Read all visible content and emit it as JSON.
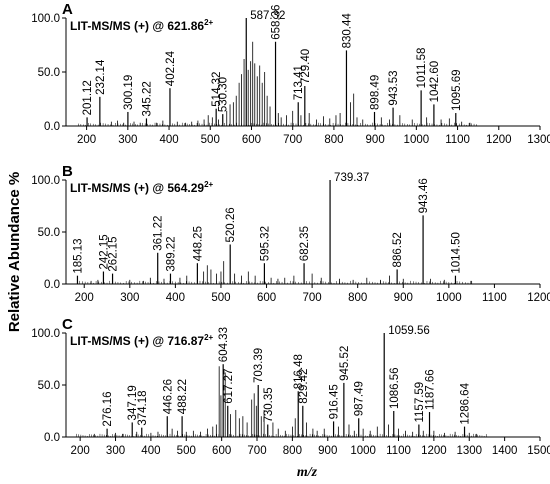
{
  "chart_data": {
    "ylabel": "Relative Abundance %",
    "xlabel": "m/z",
    "panels": [
      {
        "letter": "A",
        "title_prefix": "LIT-MS/MS (+) @ ",
        "precursor": "621.86",
        "charge": "2+",
        "type": "bar",
        "xlim": [
          150,
          1300
        ],
        "xticks": [
          "200",
          "300",
          "400",
          "500",
          "600",
          "700",
          "800",
          "900",
          "1000",
          "1100",
          "1200",
          "1300"
        ],
        "ylim": [
          0,
          100
        ],
        "yticks": [
          "0.0",
          "50.0",
          "100.0"
        ],
        "labeled_peaks": [
          {
            "label": "201.12",
            "mz": 201.12,
            "y": 8
          },
          {
            "label": "232.14",
            "mz": 232.14,
            "y": 27
          },
          {
            "label": "300.19",
            "mz": 300.19,
            "y": 13
          },
          {
            "label": "345.22",
            "mz": 345.22,
            "y": 7
          },
          {
            "label": "402.24",
            "mz": 402.24,
            "y": 35
          },
          {
            "label": "514.32",
            "mz": 514.32,
            "y": 16
          },
          {
            "label": "530.30",
            "mz": 530.3,
            "y": 11
          },
          {
            "label": "587.32",
            "mz": 587.32,
            "y": 100
          },
          {
            "label": "658.36",
            "mz": 658.36,
            "y": 78
          },
          {
            "label": "713.41",
            "mz": 713.41,
            "y": 22
          },
          {
            "label": "729.40",
            "mz": 729.4,
            "y": 37
          },
          {
            "label": "830.44",
            "mz": 830.44,
            "y": 70
          },
          {
            "label": "898.49",
            "mz": 898.49,
            "y": 13
          },
          {
            "label": "943.53",
            "mz": 943.53,
            "y": 17
          },
          {
            "label": "1011.58",
            "mz": 1011.58,
            "y": 33
          },
          {
            "label": "1042.60",
            "mz": 1042.6,
            "y": 20
          },
          {
            "label": "1095.69",
            "mz": 1095.69,
            "y": 12
          }
        ],
        "minor_peaks": [
          [
            260,
            4
          ],
          [
            275,
            5
          ],
          [
            290,
            3
          ],
          [
            315,
            4
          ],
          [
            330,
            3
          ],
          [
            370,
            3
          ],
          [
            385,
            5
          ],
          [
            420,
            4
          ],
          [
            440,
            3
          ],
          [
            455,
            4
          ],
          [
            470,
            5
          ],
          [
            485,
            6
          ],
          [
            495,
            10
          ],
          [
            505,
            8
          ],
          [
            520,
            6
          ],
          [
            540,
            14
          ],
          [
            548,
            20
          ],
          [
            556,
            22
          ],
          [
            563,
            28
          ],
          [
            570,
            40
          ],
          [
            576,
            48
          ],
          [
            582,
            62
          ],
          [
            592,
            52
          ],
          [
            598,
            60
          ],
          [
            603,
            78
          ],
          [
            608,
            58
          ],
          [
            614,
            46
          ],
          [
            620,
            56
          ],
          [
            626,
            40
          ],
          [
            632,
            50
          ],
          [
            638,
            28
          ],
          [
            645,
            18
          ],
          [
            665,
            12
          ],
          [
            672,
            8
          ],
          [
            685,
            10
          ],
          [
            700,
            14
          ],
          [
            720,
            10
          ],
          [
            740,
            12
          ],
          [
            758,
            6
          ],
          [
            775,
            9
          ],
          [
            790,
            7
          ],
          [
            805,
            10
          ],
          [
            815,
            12
          ],
          [
            840,
            22
          ],
          [
            848,
            30
          ],
          [
            856,
            8
          ],
          [
            870,
            6
          ],
          [
            915,
            8
          ],
          [
            935,
            6
          ],
          [
            960,
            10
          ],
          [
            990,
            6
          ],
          [
            1025,
            8
          ],
          [
            1060,
            6
          ],
          [
            1080,
            7
          ],
          [
            1110,
            4
          ],
          [
            1130,
            3
          ]
        ]
      },
      {
        "letter": "B",
        "title_prefix": "LIT-MS/MS (+) @ ",
        "precursor": "564.29",
        "charge": "2+",
        "type": "bar",
        "xlim": [
          160,
          1200
        ],
        "xticks": [
          "200",
          "300",
          "400",
          "500",
          "600",
          "700",
          "800",
          "900",
          "1000",
          "1100",
          "1200"
        ],
        "ylim": [
          0,
          100
        ],
        "yticks": [
          "0.0",
          "50.0",
          "100.0"
        ],
        "labeled_peaks": [
          {
            "label": "185.13",
            "mz": 185.13,
            "y": 8
          },
          {
            "label": "242.15",
            "mz": 242.15,
            "y": 12
          },
          {
            "label": "262.15",
            "mz": 262.15,
            "y": 10
          },
          {
            "label": "361.22",
            "mz": 361.22,
            "y": 30
          },
          {
            "label": "389.22",
            "mz": 389.22,
            "y": 10
          },
          {
            "label": "448.25",
            "mz": 448.25,
            "y": 20
          },
          {
            "label": "520.26",
            "mz": 520.26,
            "y": 38
          },
          {
            "label": "595.32",
            "mz": 595.32,
            "y": 20
          },
          {
            "label": "682.35",
            "mz": 682.35,
            "y": 20
          },
          {
            "label": "739.37",
            "mz": 739.37,
            "y": 100
          },
          {
            "label": "886.52",
            "mz": 886.52,
            "y": 14
          },
          {
            "label": "943.46",
            "mz": 943.46,
            "y": 66
          },
          {
            "label": "1014.50",
            "mz": 1014.5,
            "y": 8
          }
        ],
        "minor_peaks": [
          [
            215,
            3
          ],
          [
            230,
            4
          ],
          [
            300,
            4
          ],
          [
            330,
            3
          ],
          [
            345,
            6
          ],
          [
            375,
            5
          ],
          [
            410,
            6
          ],
          [
            425,
            8
          ],
          [
            462,
            12
          ],
          [
            470,
            18
          ],
          [
            478,
            14
          ],
          [
            490,
            10
          ],
          [
            500,
            12
          ],
          [
            506,
            22
          ],
          [
            530,
            10
          ],
          [
            545,
            8
          ],
          [
            560,
            12
          ],
          [
            575,
            8
          ],
          [
            610,
            6
          ],
          [
            625,
            5
          ],
          [
            640,
            6
          ],
          [
            660,
            8
          ],
          [
            700,
            10
          ],
          [
            720,
            6
          ],
          [
            760,
            5
          ],
          [
            790,
            4
          ],
          [
            820,
            6
          ],
          [
            850,
            4
          ],
          [
            870,
            8
          ],
          [
            900,
            5
          ],
          [
            960,
            5
          ],
          [
            990,
            4
          ],
          [
            1050,
            3
          ]
        ]
      },
      {
        "letter": "C",
        "title_prefix": "LIT-MS/MS (+) @ ",
        "precursor": "716.87",
        "charge": "2+",
        "type": "bar",
        "xlim": [
          160,
          1500
        ],
        "xticks": [
          "200",
          "300",
          "400",
          "500",
          "600",
          "700",
          "800",
          "900",
          "1000",
          "1100",
          "1200",
          "1300",
          "1400",
          "1500"
        ],
        "ylim": [
          0,
          100
        ],
        "yticks": [
          "0.0",
          "50.0",
          "100.0"
        ],
        "labeled_peaks": [
          {
            "label": "276.16",
            "mz": 276.16,
            "y": 8
          },
          {
            "label": "347.19",
            "mz": 347.19,
            "y": 14
          },
          {
            "label": "374.18",
            "mz": 374.18,
            "y": 9
          },
          {
            "label": "446.26",
            "mz": 446.26,
            "y": 20
          },
          {
            "label": "488.22",
            "mz": 488.22,
            "y": 20
          },
          {
            "label": "604.33",
            "mz": 604.33,
            "y": 70
          },
          {
            "label": "617.27",
            "mz": 617.27,
            "y": 30
          },
          {
            "label": "703.39",
            "mz": 703.39,
            "y": 50
          },
          {
            "label": "730.35",
            "mz": 730.35,
            "y": 12
          },
          {
            "label": "816.48",
            "mz": 816.48,
            "y": 44
          },
          {
            "label": "829.42",
            "mz": 829.42,
            "y": 30
          },
          {
            "label": "916.45",
            "mz": 916.45,
            "y": 15
          },
          {
            "label": "945.52",
            "mz": 945.52,
            "y": 52
          },
          {
            "label": "987.49",
            "mz": 987.49,
            "y": 18
          },
          {
            "label": "1059.56",
            "mz": 1059.56,
            "y": 100
          },
          {
            "label": "1086.56",
            "mz": 1086.56,
            "y": 25
          },
          {
            "label": "1157.59",
            "mz": 1157.59,
            "y": 12
          },
          {
            "label": "1187.66",
            "mz": 1187.66,
            "y": 24
          },
          {
            "label": "1286.64",
            "mz": 1286.64,
            "y": 10
          }
        ],
        "minor_peaks": [
          [
            240,
            3
          ],
          [
            300,
            4
          ],
          [
            320,
            3
          ],
          [
            360,
            5
          ],
          [
            400,
            4
          ],
          [
            420,
            5
          ],
          [
            460,
            8
          ],
          [
            475,
            6
          ],
          [
            500,
            5
          ],
          [
            520,
            6
          ],
          [
            540,
            5
          ],
          [
            560,
            8
          ],
          [
            575,
            10
          ],
          [
            585,
            12
          ],
          [
            593,
            68
          ],
          [
            598,
            40
          ],
          [
            610,
            62
          ],
          [
            625,
            22
          ],
          [
            640,
            26
          ],
          [
            650,
            18
          ],
          [
            660,
            20
          ],
          [
            672,
            14
          ],
          [
            685,
            36
          ],
          [
            692,
            42
          ],
          [
            698,
            30
          ],
          [
            712,
            20
          ],
          [
            720,
            26
          ],
          [
            745,
            14
          ],
          [
            760,
            8
          ],
          [
            780,
            6
          ],
          [
            800,
            10
          ],
          [
            808,
            18
          ],
          [
            840,
            14
          ],
          [
            858,
            8
          ],
          [
            870,
            6
          ],
          [
            890,
            8
          ],
          [
            930,
            10
          ],
          [
            960,
            12
          ],
          [
            975,
            6
          ],
          [
            1000,
            8
          ],
          [
            1020,
            6
          ],
          [
            1040,
            10
          ],
          [
            1072,
            12
          ],
          [
            1100,
            8
          ],
          [
            1120,
            6
          ],
          [
            1140,
            5
          ],
          [
            1170,
            6
          ],
          [
            1200,
            6
          ],
          [
            1230,
            4
          ],
          [
            1260,
            5
          ],
          [
            1300,
            4
          ],
          [
            1320,
            3
          ]
        ]
      }
    ]
  }
}
